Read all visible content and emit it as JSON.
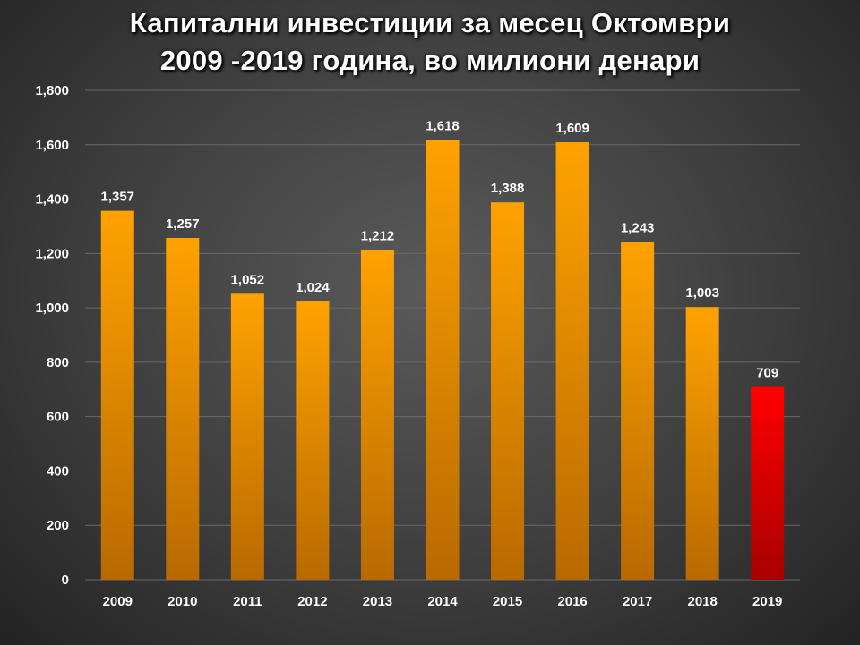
{
  "chart_data": {
    "type": "bar",
    "title_lines": [
      "Капитални инвестиции за месец Октомври",
      "2009 -2019 година, во милиони денари"
    ],
    "categories": [
      "2009",
      "2010",
      "2011",
      "2012",
      "2013",
      "2014",
      "2015",
      "2016",
      "2017",
      "2018",
      "2019"
    ],
    "values": [
      1357,
      1257,
      1052,
      1024,
      1212,
      1618,
      1388,
      1609,
      1243,
      1003,
      709
    ],
    "value_labels": [
      "1,357",
      "1,257",
      "1,052",
      "1,024",
      "1,212",
      "1,618",
      "1,388",
      "1,609",
      "1,243",
      "1,003",
      "709"
    ],
    "y_ticks": [
      0,
      200,
      400,
      600,
      800,
      1000,
      1200,
      1400,
      1600,
      1800
    ],
    "y_tick_labels": [
      "0",
      "200",
      "400",
      "600",
      "800",
      "1,000",
      "1,200",
      "1,400",
      "1,600",
      "1,800"
    ],
    "ylim": [
      0,
      1800
    ],
    "xlabel": "",
    "ylabel": "",
    "grid": true,
    "legend": "none",
    "colors": {
      "bar": "#f5a000",
      "bar_dark": "#b86a00",
      "highlight_bar": "#ff0000",
      "highlight_bar_dark": "#a80000",
      "highlight_category": "2019",
      "grid": "#6a6a6a",
      "text": "#ffffff"
    }
  }
}
